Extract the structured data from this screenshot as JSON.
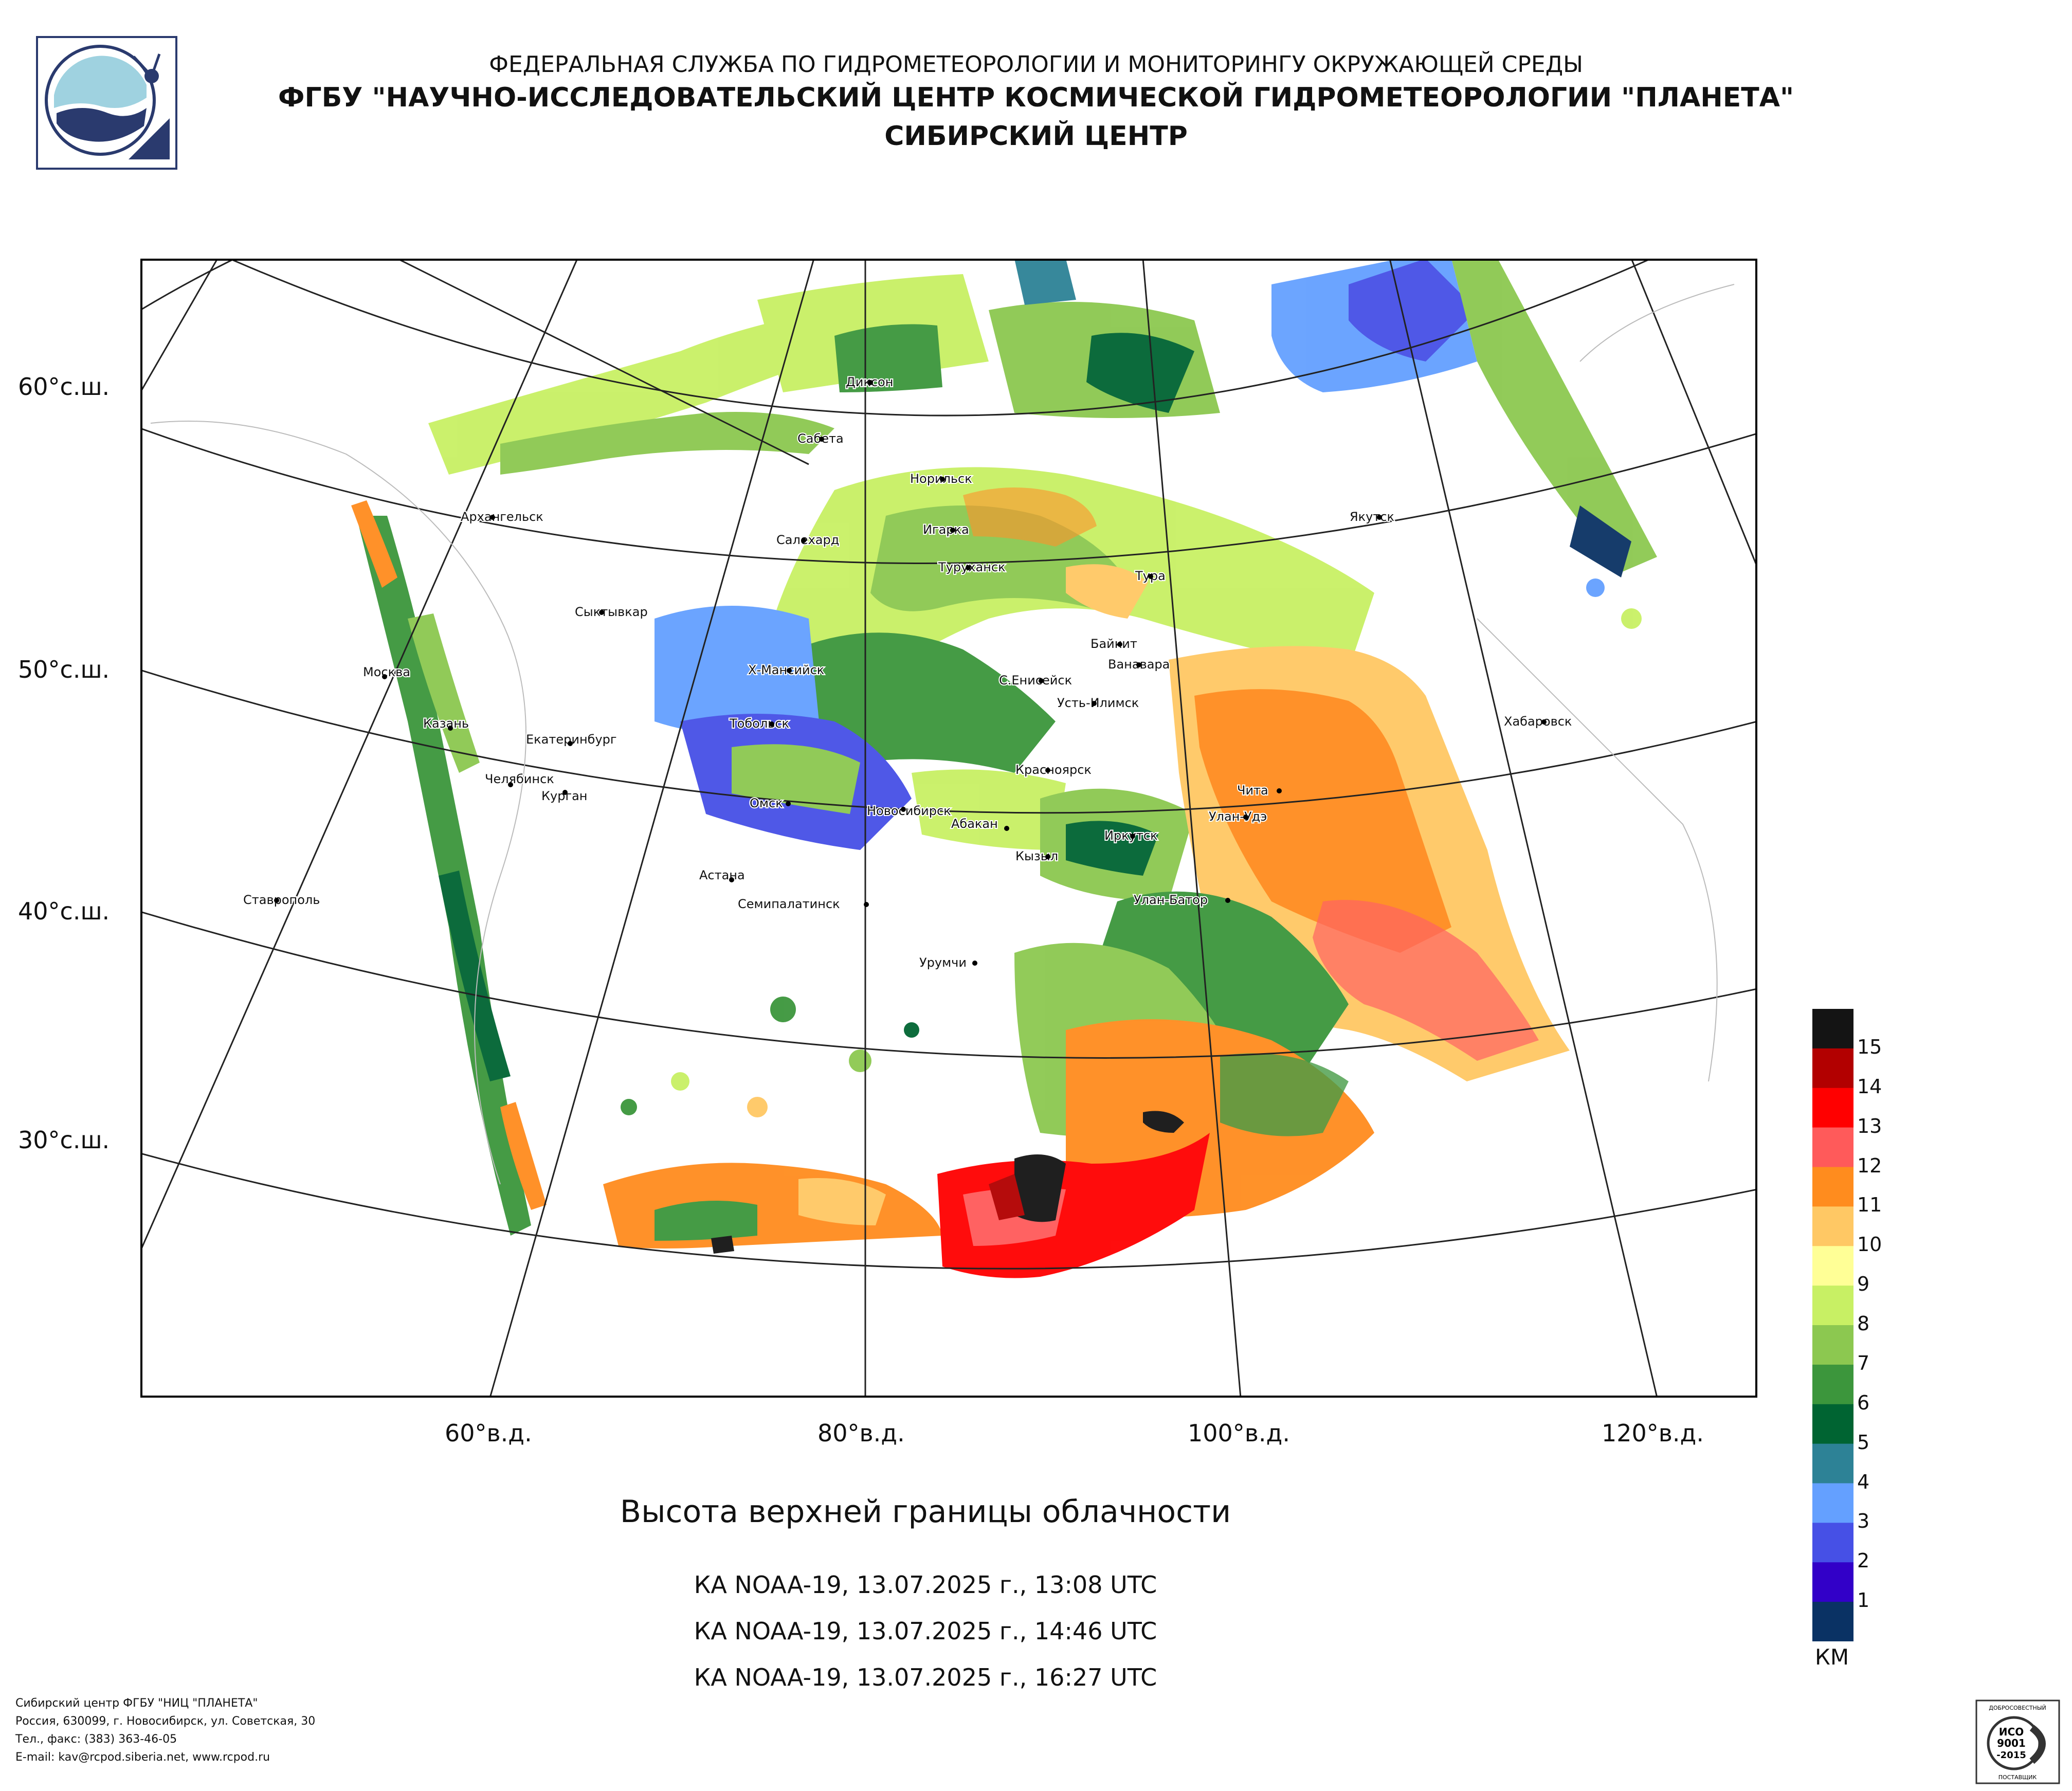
{
  "header": {
    "line1": "ФЕДЕРАЛЬНАЯ СЛУЖБА ПО ГИДРОМЕТЕОРОЛОГИИ И МОНИТОРИНГУ ОКРУЖАЮЩЕЙ СРЕДЫ",
    "line2": "ФГБУ \"НАУЧНО-ИССЛЕДОВАТЕЛЬСКИЙ ЦЕНТР КОСМИЧЕСКОЙ ГИДРОМЕТЕОРОЛОГИИ \"ПЛАНЕТА\"",
    "line3": "СИБИРСКИЙ ЦЕНТР"
  },
  "map": {
    "lat_labels": [
      "60°с.ш.",
      "50°с.ш.",
      "40°с.ш.",
      "30°с.ш."
    ],
    "lon_labels": [
      "60°в.д.",
      "80°в.д.",
      "100°в.д.",
      "120°в.д."
    ],
    "cities": [
      "Диксон",
      "Сабета",
      "Норильск",
      "Архангельск",
      "Салехард",
      "Игарка",
      "Туруханск",
      "Якутск",
      "Тура",
      "Сыктывкар",
      "Байкит",
      "Ванавара",
      "Москва",
      "Х-Мансийск",
      "С.Енисейск",
      "Хабаровск",
      "Усть-Илимск",
      "Казань",
      "Тобольск",
      "Екатеринбург",
      "Челябинск",
      "Красноярск",
      "Чита",
      "Курган",
      "Омск",
      "Новосибирск",
      "Улан-Удэ",
      "Абакан",
      "Иркутск",
      "Кызыл",
      "Астана",
      "Ставрополь",
      "Семипалатинск",
      "Улан-Батор",
      "Урумчи"
    ]
  },
  "product": {
    "title": "Высота верхней границы облачности",
    "passes": [
      "КА NOAA-19, 13.07.2025 г., 13:08 UTC",
      "КА NOAA-19, 13.07.2025 г., 14:46 UTC",
      "КА NOAA-19, 13.07.2025 г., 16:27 UTC"
    ]
  },
  "legend": {
    "labels": [
      "15",
      "14",
      "13",
      "12",
      "11",
      "10",
      "9",
      "8",
      "7",
      "6",
      "5",
      "4",
      "3",
      "2",
      "1"
    ],
    "colors": [
      "#141414",
      "#b20000",
      "#ff0000",
      "#ff5a5a",
      "#ff8c1e",
      "#ffc864",
      "#ffff96",
      "#c8f064",
      "#8cc850",
      "#3c963c",
      "#006432",
      "#2d8296",
      "#64a0ff",
      "#4650e6",
      "#3200c8",
      "#0a3264"
    ],
    "unit": "КМ"
  },
  "footer": {
    "line1": "Сибирский центр ФГБУ \"НИЦ \"ПЛАНЕТА\"",
    "line2": "Россия, 630099, г. Новосибирск, ул. Советская, 30",
    "line3": "Тел., факс: (383) 363-46-05",
    "line4": "E-mail: kav@rcpod.siberia.net, www.rcpod.ru"
  },
  "iso_badge": {
    "top": "ДОБРОСОВЕСТНЫЙ",
    "line1": "ИСО",
    "line2": "9001",
    "line3": "-2015",
    "bottom": "ПОСТАВЩИК"
  }
}
